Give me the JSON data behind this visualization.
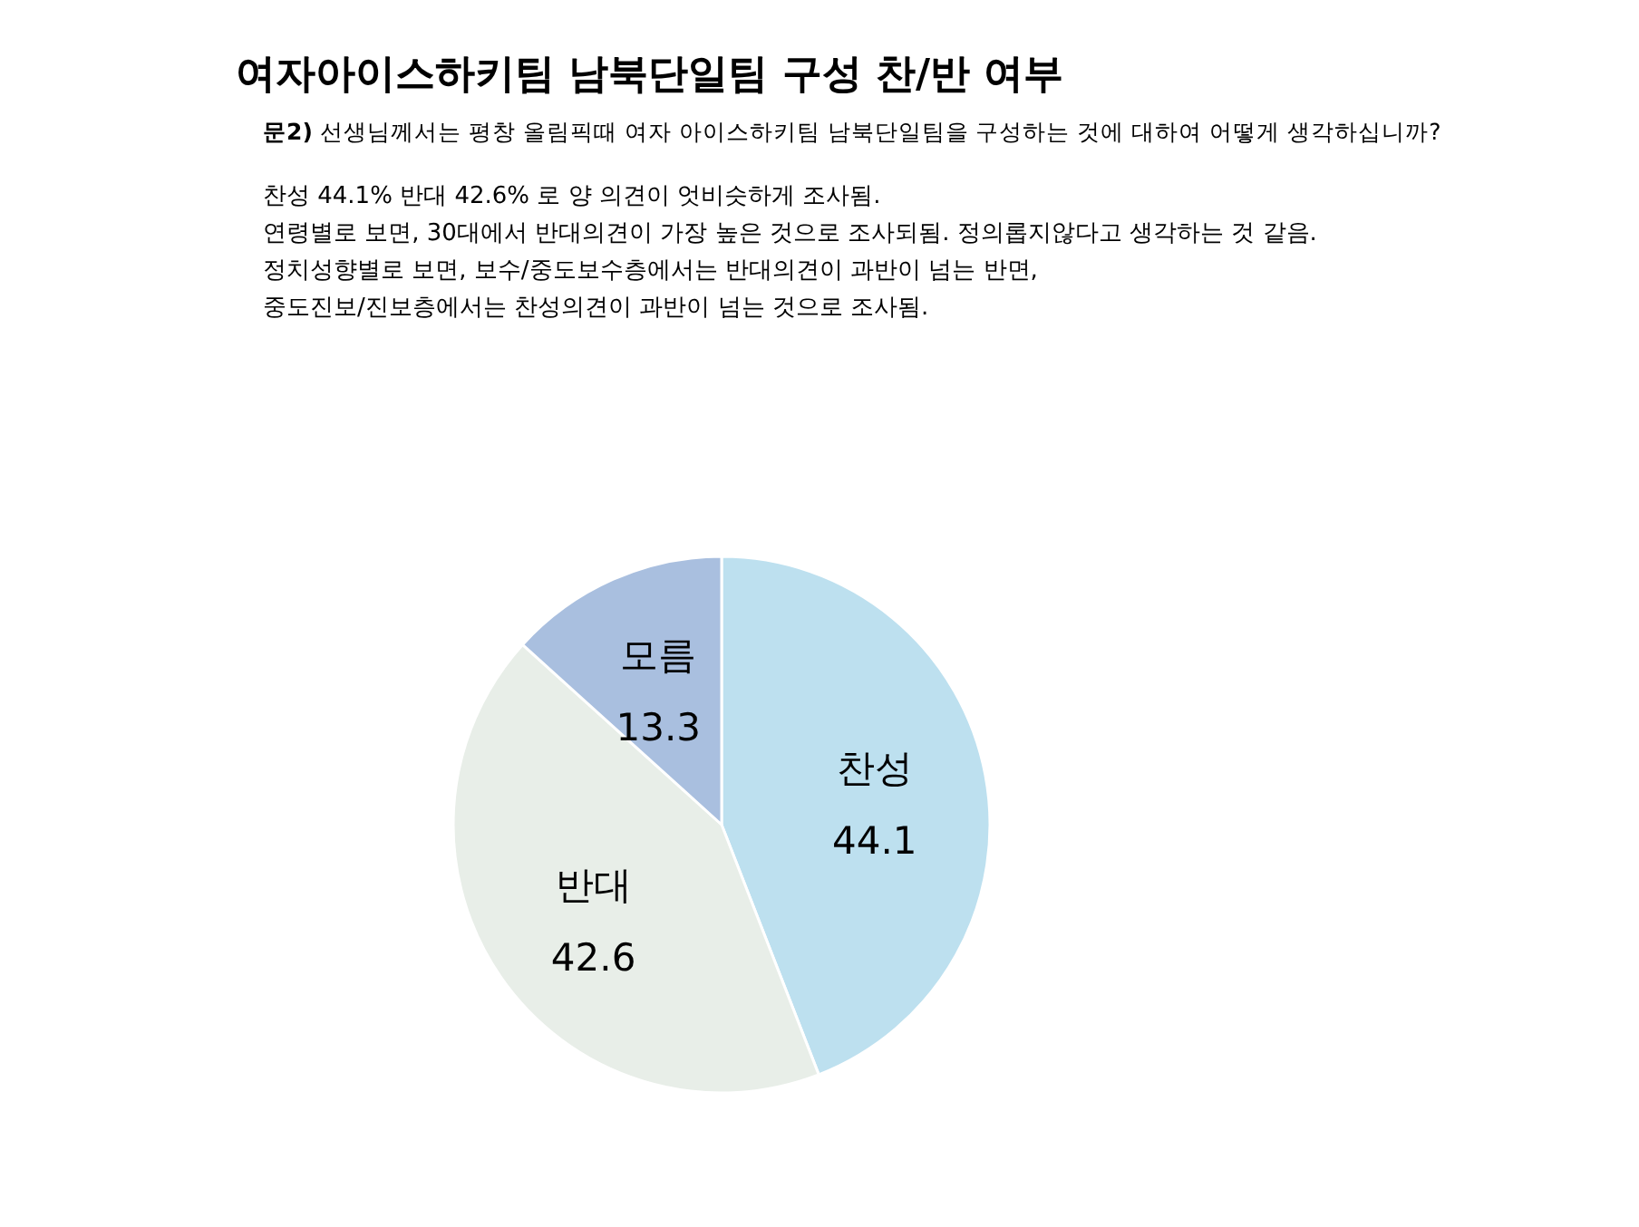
{
  "chart_data": {
    "type": "pie",
    "title": "여자아이스하키팀 남북단일팀 구성 찬/반 여부",
    "subtitle": "**문2)** 선생님께서는 평창 올림픽때 여자 아이스하키팀 남북단일팀을 구성하는 것에 대하여 어떻게 생각하십니까?",
    "annotations": [
      "찬성 44.1% 반대 42.6% 로 양 의견이 엇비슷하게 조사됨.",
      "연령별로 보면, 30대에서 반대의견이 가장 높은 것으로 조사되됨. 정의롭지않다고 생각하는 것 같음.",
      "정치성향별로 보면, 보수/중도보수층에서는 반대의견이 과반이 넘는 반면,",
      "중도진보/진보층에서는 찬성의견이 과반이 넘는 것으로 조사됨."
    ],
    "categories": [
      "찬성",
      "반대",
      "모름"
    ],
    "values": [
      44.1,
      42.6,
      13.3
    ],
    "colors": [
      "#bde0ef",
      "#e8eee8",
      "#a9bfdf"
    ],
    "data_labels": true
  }
}
